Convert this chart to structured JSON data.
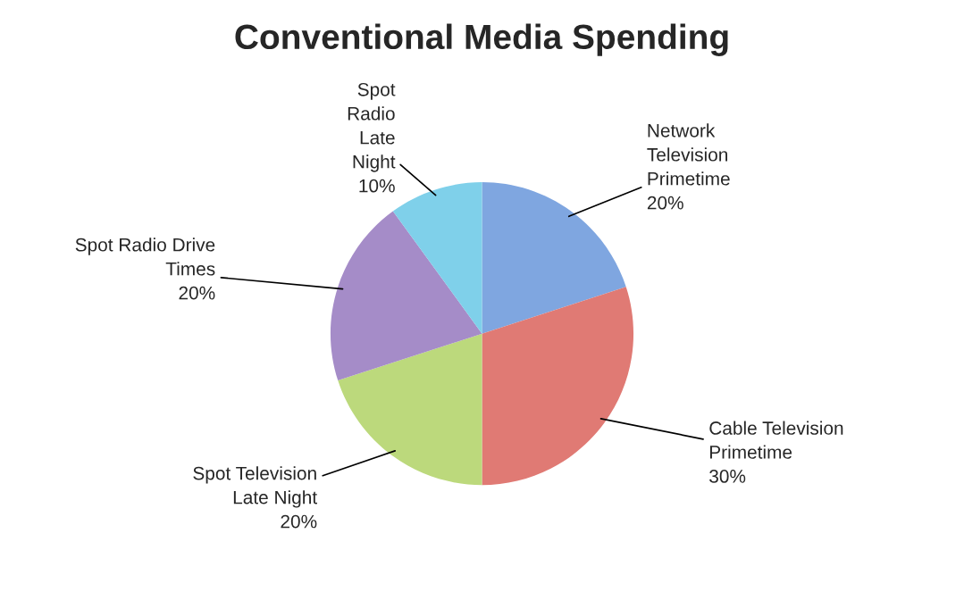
{
  "chart_data": {
    "type": "pie",
    "title": "Conventional Media Spending",
    "categories": [
      "Network\nTelevision\nPrimetime",
      "Cable Television\nPrimetime",
      "Spot Television\nLate Night",
      "Spot Radio Drive\nTimes",
      "Spot\nRadio\nLate\nNight"
    ],
    "values": [
      20,
      30,
      20,
      20,
      10
    ],
    "value_labels": [
      "20%",
      "30%",
      "20%",
      "20%",
      "10%"
    ],
    "colors": [
      "#7fa6e0",
      "#e07a74",
      "#bcd97c",
      "#a58cc8",
      "#7fd0ea"
    ],
    "legend": false
  }
}
